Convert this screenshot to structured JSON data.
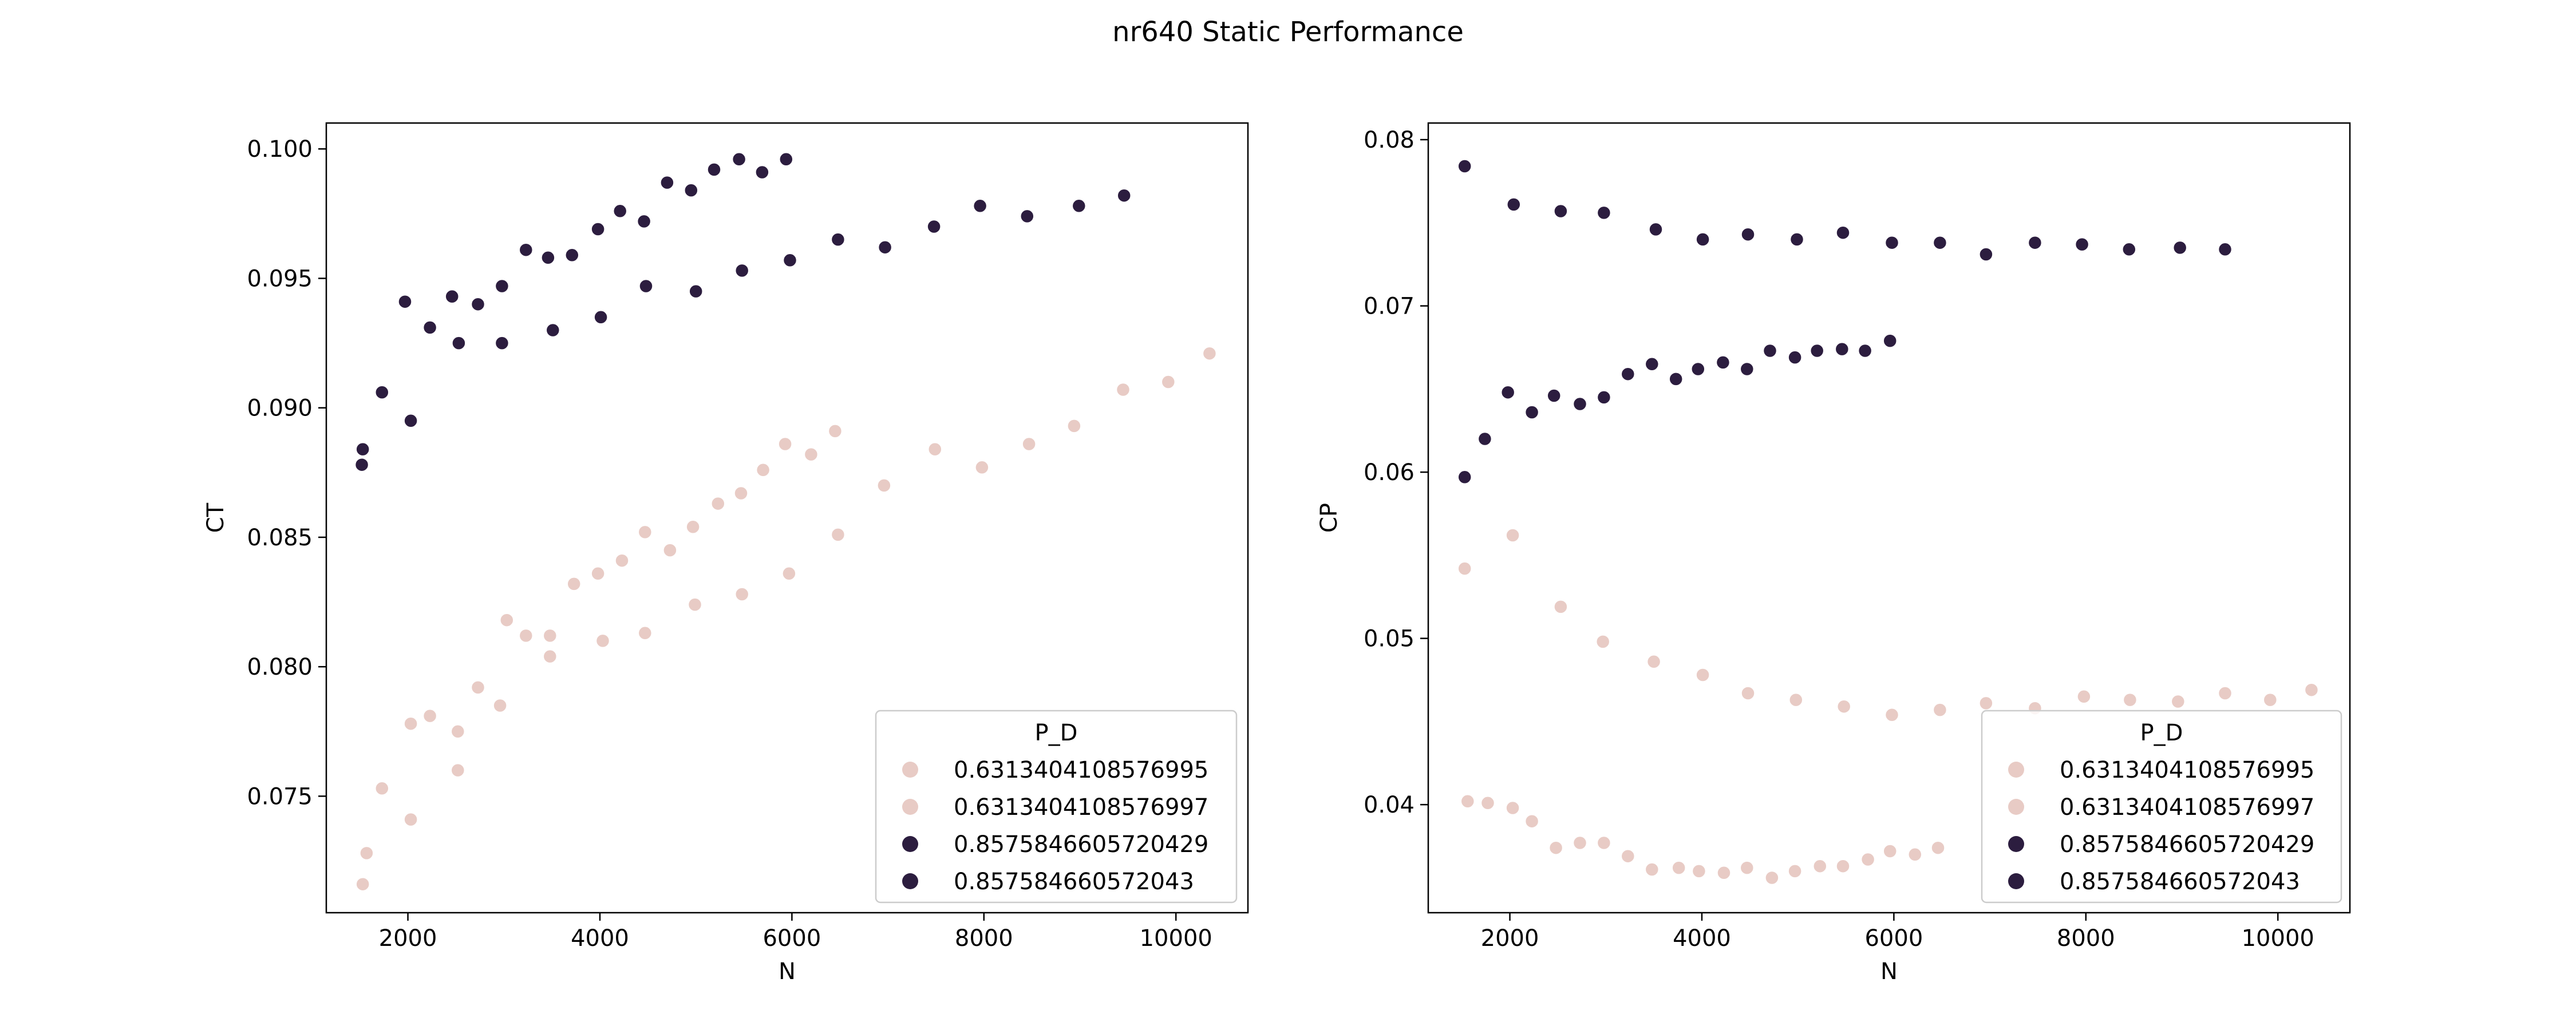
{
  "figure": {
    "title": "nr640 Static Performance"
  },
  "colors": {
    "light": "#e8cbc5",
    "dark": "#2c1d3f",
    "axis": "#000000",
    "legend_border": "#cccccc"
  },
  "chart_data": [
    {
      "type": "scatter",
      "title": "",
      "xlabel": "N",
      "ylabel": "CT",
      "xlim": [
        1150,
        10750
      ],
      "ylim": [
        0.0705,
        0.101
      ],
      "x_ticks": [
        "2000",
        "4000",
        "6000",
        "8000",
        "10000"
      ],
      "x_tick_values": [
        2000,
        4000,
        6000,
        8000,
        10000
      ],
      "y_ticks": [
        "0.075",
        "0.080",
        "0.085",
        "0.090",
        "0.095",
        "0.100"
      ],
      "y_tick_values": [
        0.075,
        0.08,
        0.085,
        0.09,
        0.095,
        0.1
      ],
      "grid": false,
      "legend": {
        "title": "P_D",
        "placement": "lower-right",
        "entries": [
          {
            "label": "0.6313404108576995",
            "color": "light"
          },
          {
            "label": "0.6313404108576997",
            "color": "light"
          },
          {
            "label": "0.8575846605720429",
            "color": "dark"
          },
          {
            "label": "0.857584660572043",
            "color": "dark"
          }
        ]
      },
      "series": [
        {
          "name": "0.6313404108576995",
          "color": "light",
          "x": [
            1530,
            1570,
            1730,
            2030,
            2230,
            2520,
            2730,
            2960,
            3230,
            3480,
            3730,
            3980,
            4230,
            4470,
            4730,
            4970,
            5230,
            5470,
            5700,
            5930,
            6200,
            6450
          ],
          "y": [
            0.0716,
            0.0728,
            0.0753,
            0.0778,
            0.0781,
            0.0775,
            0.0792,
            0.0785,
            0.0812,
            0.0804,
            0.0832,
            0.0836,
            0.0841,
            0.0852,
            0.0845,
            0.0854,
            0.0863,
            0.0867,
            0.0876,
            0.0886,
            0.0882,
            0.0891
          ]
        },
        {
          "name": "0.6313404108576997",
          "color": "light",
          "x": [
            2030,
            2520,
            3030,
            3480,
            4030,
            4470,
            4990,
            5480,
            5970,
            6480,
            6960,
            7490,
            7980,
            8470,
            8940,
            9450,
            9920,
            10350
          ],
          "y": [
            0.0741,
            0.076,
            0.0818,
            0.0812,
            0.081,
            0.0813,
            0.0824,
            0.0828,
            0.0836,
            0.0851,
            0.087,
            0.0884,
            0.0877,
            0.0886,
            0.0893,
            0.0907,
            0.091,
            0.0921
          ]
        },
        {
          "name": "0.8575846605720429",
          "color": "dark",
          "x": [
            1530,
            1730,
            1970,
            2230,
            2460,
            2730,
            2980,
            3230,
            3460,
            3710,
            3980,
            4210,
            4460,
            4700,
            4950,
            5190,
            5450,
            5690,
            5940
          ],
          "y": [
            0.0884,
            0.0906,
            0.0941,
            0.0931,
            0.0943,
            0.094,
            0.0947,
            0.0961,
            0.0958,
            0.0959,
            0.0969,
            0.0976,
            0.0972,
            0.0987,
            0.0984,
            0.0992,
            0.0996,
            0.0991,
            0.0996
          ]
        },
        {
          "name": "0.857584660572043",
          "color": "dark",
          "x": [
            1520,
            2030,
            2530,
            2980,
            3510,
            4010,
            4480,
            5000,
            5480,
            5980,
            6480,
            6970,
            7480,
            7960,
            8450,
            8990,
            9460
          ],
          "y": [
            0.0878,
            0.0895,
            0.0925,
            0.0925,
            0.093,
            0.0935,
            0.0947,
            0.0945,
            0.0953,
            0.0957,
            0.0965,
            0.0962,
            0.097,
            0.0978,
            0.0974,
            0.0978,
            0.0982
          ]
        }
      ]
    },
    {
      "type": "scatter",
      "title": "",
      "xlabel": "N",
      "ylabel": "CP",
      "xlim": [
        1150,
        10750
      ],
      "ylim": [
        0.0335,
        0.081
      ],
      "x_ticks": [
        "2000",
        "4000",
        "6000",
        "8000",
        "10000"
      ],
      "x_tick_values": [
        2000,
        4000,
        6000,
        8000,
        10000
      ],
      "y_ticks": [
        "0.04",
        "0.05",
        "0.06",
        "0.07",
        "0.08"
      ],
      "y_tick_values": [
        0.04,
        0.05,
        0.06,
        0.07,
        0.08
      ],
      "grid": false,
      "legend": {
        "title": "P_D",
        "placement": "lower-right",
        "entries": [
          {
            "label": "0.6313404108576995",
            "color": "light"
          },
          {
            "label": "0.6313404108576997",
            "color": "light"
          },
          {
            "label": "0.8575846605720429",
            "color": "dark"
          },
          {
            "label": "0.857584660572043",
            "color": "dark"
          }
        ]
      },
      "series": [
        {
          "name": "0.6313404108576995",
          "color": "light",
          "x": [
            1560,
            1770,
            2030,
            2230,
            2480,
            2730,
            2980,
            3230,
            3480,
            3760,
            3970,
            4230,
            4470,
            4730,
            4970,
            5230,
            5470,
            5730,
            5960,
            6220,
            6460
          ],
          "y": [
            0.0402,
            0.0401,
            0.0398,
            0.039,
            0.0374,
            0.0377,
            0.0377,
            0.0369,
            0.0361,
            0.0362,
            0.036,
            0.0359,
            0.0362,
            0.0356,
            0.036,
            0.0363,
            0.0363,
            0.0367,
            0.0372,
            0.037,
            0.0374
          ]
        },
        {
          "name": "0.6313404108576997",
          "color": "light",
          "x": [
            1530,
            2030,
            2530,
            2970,
            3500,
            4010,
            4480,
            4980,
            5480,
            5980,
            6480,
            6960,
            7470,
            7980,
            8460,
            8960,
            9450,
            9920,
            10350
          ],
          "y": [
            0.0542,
            0.0562,
            0.0519,
            0.0498,
            0.0486,
            0.0478,
            0.0467,
            0.0463,
            0.0459,
            0.0454,
            0.0457,
            0.0461,
            0.0458,
            0.0465,
            0.0463,
            0.0462,
            0.0467,
            0.0463,
            0.0469
          ]
        },
        {
          "name": "0.8575846605720429",
          "color": "dark",
          "x": [
            1530,
            1740,
            1980,
            2230,
            2460,
            2730,
            2980,
            3230,
            3480,
            3730,
            3960,
            4220,
            4470,
            4710,
            4970,
            5200,
            5460,
            5700,
            5960
          ],
          "y": [
            0.0597,
            0.062,
            0.0648,
            0.0636,
            0.0646,
            0.0641,
            0.0645,
            0.0659,
            0.0665,
            0.0656,
            0.0662,
            0.0666,
            0.0662,
            0.0673,
            0.0669,
            0.0673,
            0.0674,
            0.0673,
            0.0679
          ]
        },
        {
          "name": "0.857584660572043",
          "color": "dark",
          "x": [
            1530,
            2040,
            2530,
            2980,
            3520,
            4010,
            4480,
            4990,
            5470,
            5980,
            6480,
            6960,
            7470,
            7960,
            8450,
            8980,
            9450
          ],
          "y": [
            0.0784,
            0.0761,
            0.0757,
            0.0756,
            0.0746,
            0.074,
            0.0743,
            0.074,
            0.0744,
            0.0738,
            0.0738,
            0.0731,
            0.0738,
            0.0737,
            0.0734,
            0.0735,
            0.0734
          ]
        }
      ]
    }
  ]
}
